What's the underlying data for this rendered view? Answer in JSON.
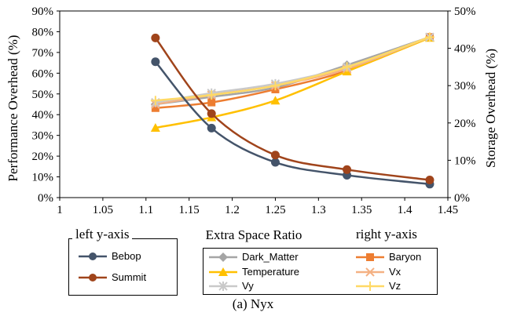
{
  "chart_data": {
    "type": "line",
    "caption": "(a) Nyx",
    "xlabel": "Extra Space Ratio",
    "ylabel_left": "Performance Overhead (%)",
    "ylabel_right": "Storage Overhead (%)",
    "xlim": [
      1,
      1.45
    ],
    "xticks": [
      "1",
      "1.05",
      "1.1",
      "1.15",
      "1.2",
      "1.25",
      "1.3",
      "1.35",
      "1.4",
      "1.45"
    ],
    "ylim_left": [
      0,
      90
    ],
    "yticks_left": [
      "0%",
      "10%",
      "20%",
      "30%",
      "40%",
      "50%",
      "60%",
      "70%",
      "80%",
      "90%"
    ],
    "ylim_right": [
      0,
      50
    ],
    "yticks_right": [
      "0%",
      "10%",
      "20%",
      "30%",
      "40%",
      "50%"
    ],
    "legend_left_title": "left y-axis",
    "legend_right_title": "right y-axis",
    "x": [
      1.111,
      1.176,
      1.25,
      1.333,
      1.429
    ],
    "series_left": [
      {
        "name": "Bebop",
        "color": "#44546a",
        "marker": "circle",
        "values": [
          65.5,
          33.5,
          17,
          10.8,
          6.5
        ]
      },
      {
        "name": "Summit",
        "color": "#a0441b",
        "marker": "circle",
        "values": [
          77,
          40.5,
          20.5,
          13.5,
          8.5
        ]
      }
    ],
    "series_right": [
      {
        "name": "Dark_Matter",
        "color": "#a5a5a5",
        "marker": "diamond",
        "values": [
          25,
          27,
          29.5,
          35.5,
          43
        ]
      },
      {
        "name": "Baryon",
        "color": "#ed7d31",
        "marker": "square",
        "values": [
          24,
          25.5,
          29,
          34,
          43
        ]
      },
      {
        "name": "Temperature",
        "color": "#ffc000",
        "marker": "triangle",
        "values": [
          18.7,
          21.5,
          26,
          33.8,
          42.8
        ]
      },
      {
        "name": "Vx",
        "color": "#f4b183",
        "marker": "x",
        "values": [
          25,
          27.5,
          30,
          34.5,
          43
        ]
      },
      {
        "name": "Vy",
        "color": "#c9c9c9",
        "marker": "star",
        "values": [
          25.5,
          28,
          30.5,
          35,
          43
        ]
      },
      {
        "name": "Vz",
        "color": "#ffd966",
        "marker": "plus",
        "values": [
          26,
          27.5,
          30,
          35,
          43
        ]
      }
    ]
  }
}
